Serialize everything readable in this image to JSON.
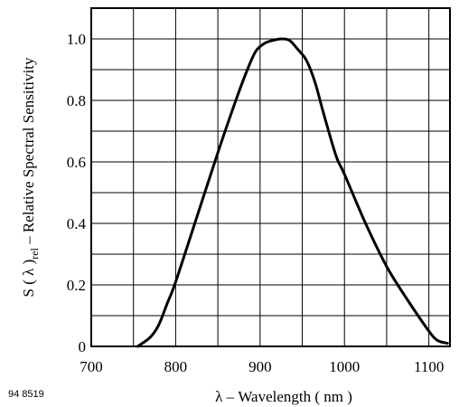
{
  "chart_data": {
    "type": "line",
    "title": "",
    "xlabel_symbol": "λ",
    "xlabel_text": " – Wavelength ( nm )",
    "ylabel_main": "S ( λ )",
    "ylabel_sub": "rel",
    "ylabel_rest": "  – Relative Spectral Sensitivity",
    "xlim": [
      700,
      1125
    ],
    "ylim": [
      0,
      1.1
    ],
    "x_ticks": [
      700,
      800,
      900,
      1000,
      1100
    ],
    "x_tick_labels": [
      "700",
      "800",
      "900",
      "1000",
      "1100"
    ],
    "y_ticks": [
      0,
      0.2,
      0.4,
      0.6,
      0.8,
      1.0
    ],
    "y_tick_labels": [
      "0",
      "0.2",
      "0.4",
      "0.6",
      "0.8",
      "1.0"
    ],
    "grid": true,
    "grid_x_step": 50,
    "grid_y_step": 0.1,
    "series": [
      {
        "x": [
          755,
          770,
          780,
          790,
          800,
          825,
          850,
          870,
          885,
          895,
          905,
          915,
          925,
          935,
          945,
          955,
          965,
          975,
          990,
          1000,
          1025,
          1050,
          1075,
          1100,
          1110,
          1122
        ],
        "y": [
          0.0,
          0.03,
          0.07,
          0.14,
          0.21,
          0.42,
          0.63,
          0.79,
          0.9,
          0.96,
          0.985,
          0.995,
          1.0,
          0.995,
          0.965,
          0.93,
          0.86,
          0.76,
          0.62,
          0.56,
          0.4,
          0.26,
          0.15,
          0.05,
          0.02,
          0.01
        ]
      }
    ],
    "figure_id": "94 8519"
  }
}
